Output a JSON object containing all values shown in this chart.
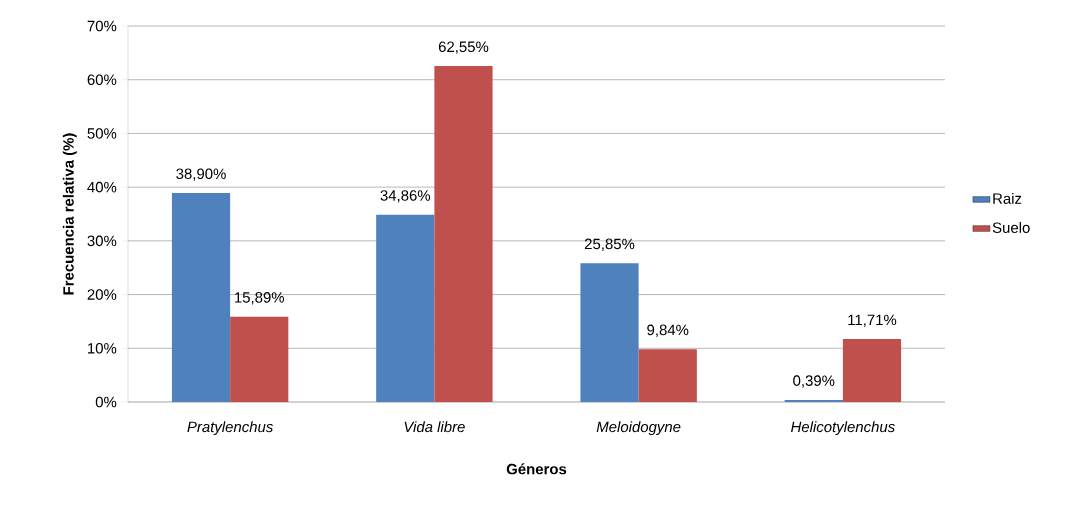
{
  "chart_data": {
    "type": "bar",
    "xlabel": "Géneros",
    "ylabel": "Frecuencia relativa (%)",
    "categories": [
      "Pratylenchus",
      "Vida libre",
      "Meloidogyne",
      "Helicotylenchus"
    ],
    "series": [
      {
        "name": "Raiz",
        "color": "#4f81bd",
        "values": [
          38.9,
          34.86,
          25.85,
          0.39
        ],
        "value_labels": [
          "38,90%",
          "34,86%",
          "25,85%",
          "0,39%"
        ]
      },
      {
        "name": "Suelo",
        "color": "#c0504d",
        "values": [
          15.89,
          62.55,
          9.84,
          11.71
        ],
        "value_labels": [
          "15,89%",
          "62,55%",
          "9,84%",
          "11,71%"
        ]
      }
    ],
    "ylim": [
      0,
      70
    ],
    "yticks": [
      {
        "value": 0,
        "label": "0%"
      },
      {
        "value": 10,
        "label": "10%"
      },
      {
        "value": 20,
        "label": "20%"
      },
      {
        "value": 30,
        "label": "30%"
      },
      {
        "value": 40,
        "label": "40%"
      },
      {
        "value": 50,
        "label": "50%"
      },
      {
        "value": 60,
        "label": "60%"
      },
      {
        "value": 70,
        "label": "70%"
      }
    ],
    "grid": "y",
    "legend": "right"
  }
}
